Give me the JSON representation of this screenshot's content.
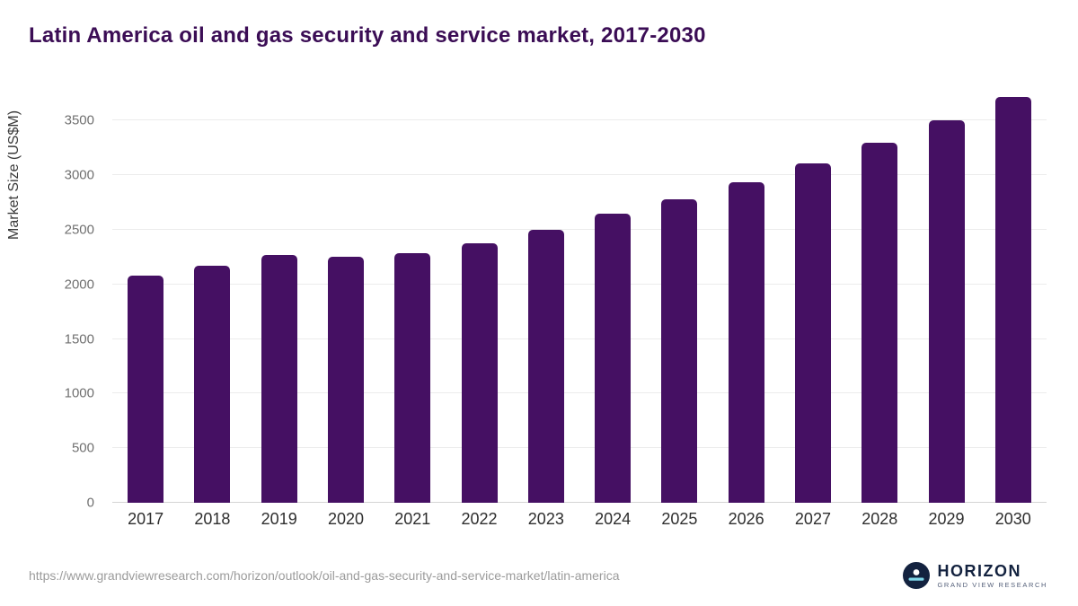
{
  "title": "Latin America oil and gas security and service market, 2017-2030",
  "chart_data": {
    "type": "bar",
    "categories": [
      "2017",
      "2018",
      "2019",
      "2020",
      "2021",
      "2022",
      "2023",
      "2024",
      "2025",
      "2026",
      "2027",
      "2028",
      "2029",
      "2030"
    ],
    "values": [
      2080,
      2170,
      2270,
      2250,
      2290,
      2380,
      2500,
      2650,
      2780,
      2940,
      3110,
      3300,
      3500,
      3720
    ],
    "title": "Latin America oil and gas security and service market, 2017-2030",
    "xlabel": "",
    "ylabel": "Market Size (US$M)",
    "ylim": [
      0,
      3800
    ],
    "yticks": [
      0,
      500,
      1000,
      1500,
      2000,
      2500,
      3000,
      3500
    ],
    "grid": true,
    "legend": false,
    "bar_color": "#451063"
  },
  "colors": {
    "title": "#3b0d55",
    "bar": "#451063",
    "gridline": "#ececec"
  },
  "footer": {
    "source_url": "https://www.grandviewresearch.com/horizon/outlook/oil-and-gas-security-and-service-market/latin-america",
    "logo": {
      "name": "HORIZON",
      "subtitle": "GRAND VIEW RESEARCH"
    }
  }
}
